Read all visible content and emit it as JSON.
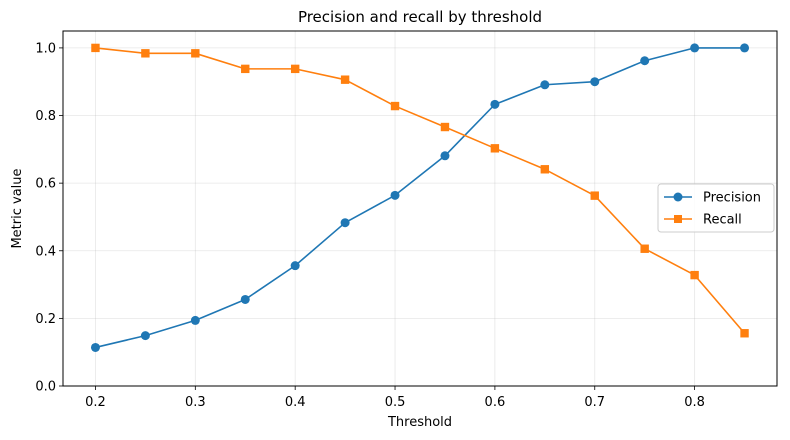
{
  "chart_data": {
    "type": "line",
    "title": "Precision and recall by threshold",
    "xlabel": "Threshold",
    "ylabel": "Metric value",
    "x": [
      0.2,
      0.25,
      0.3,
      0.35,
      0.4,
      0.45,
      0.5,
      0.55,
      0.6,
      0.65,
      0.7,
      0.75,
      0.8,
      0.85
    ],
    "xlim": [
      0.1675,
      0.8825
    ],
    "ylim": [
      0.0,
      1.05
    ],
    "xticks": [
      0.2,
      0.3,
      0.4,
      0.5,
      0.6,
      0.7,
      0.8
    ],
    "xtick_labels": [
      "0.2",
      "0.3",
      "0.4",
      "0.5",
      "0.6",
      "0.7",
      "0.8"
    ],
    "yticks": [
      0.0,
      0.2,
      0.4,
      0.6,
      0.8,
      1.0
    ],
    "ytick_labels": [
      "0.0",
      "0.2",
      "0.4",
      "0.6",
      "0.8",
      "1.0"
    ],
    "grid": true,
    "legend_position": "center-right",
    "series": [
      {
        "name": "Precision",
        "color": "#1f77b4",
        "marker": "circle",
        "values": [
          0.114,
          0.149,
          0.194,
          0.256,
          0.356,
          0.483,
          0.564,
          0.681,
          0.833,
          0.891,
          0.9,
          0.962,
          1.0,
          1.0
        ]
      },
      {
        "name": "Recall",
        "color": "#ff7f0e",
        "marker": "square",
        "values": [
          1.0,
          0.984,
          0.984,
          0.938,
          0.938,
          0.906,
          0.828,
          0.766,
          0.703,
          0.641,
          0.563,
          0.406,
          0.328,
          0.156
        ]
      }
    ]
  }
}
